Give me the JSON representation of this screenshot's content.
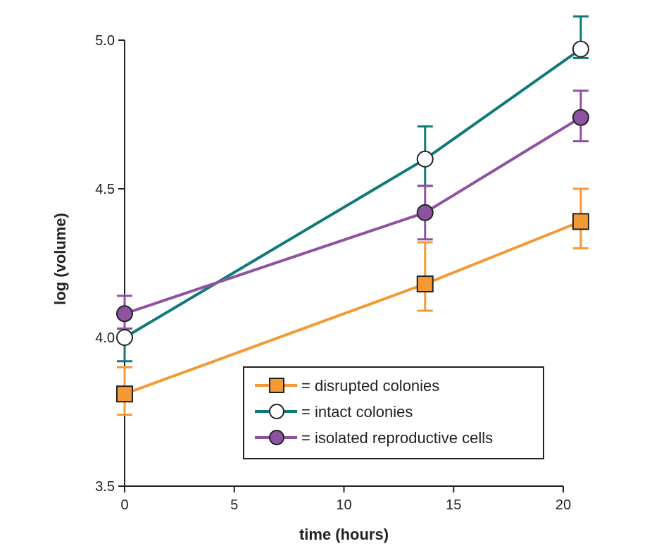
{
  "chart_data": {
    "type": "line",
    "title": "",
    "xlabel": "time (hours)",
    "ylabel": "log (volume)",
    "xlim": [
      0,
      20
    ],
    "ylim": [
      3.5,
      5.0
    ],
    "xticks": [
      0,
      5,
      10,
      15,
      20
    ],
    "xtick_labels": [
      "0",
      "5",
      "10",
      "15",
      "20"
    ],
    "yticks": [
      3.5,
      4.0,
      4.5,
      5.0
    ],
    "ytick_labels": [
      "3.5",
      "4.0",
      "4.5",
      "5.0"
    ],
    "grid": false,
    "legend_position": "lower-right",
    "series": [
      {
        "name": "disrupted colonies",
        "legend_label": "= disrupted colonies",
        "color": "#f39a34",
        "marker": "square",
        "marker_fill": "#f39a34",
        "x": [
          0,
          13.7,
          20.8
        ],
        "y": [
          3.81,
          4.18,
          4.39
        ],
        "err_low": [
          3.74,
          4.09,
          4.3
        ],
        "err_high": [
          3.9,
          4.32,
          4.5
        ]
      },
      {
        "name": "intact colonies",
        "legend_label": "= intact colonies",
        "color": "#117a78",
        "marker": "circle",
        "marker_fill": "#ffffff",
        "x": [
          0,
          13.7,
          20.8
        ],
        "y": [
          4.0,
          4.6,
          4.97
        ],
        "err_low": [
          3.92,
          4.51,
          4.94
        ],
        "err_high": [
          4.03,
          4.71,
          5.08
        ]
      },
      {
        "name": "isolated reproductive cells",
        "legend_label": "= isolated reproductive cells",
        "color": "#8e53a0",
        "marker": "circle",
        "marker_fill": "#8e53a0",
        "x": [
          0,
          13.7,
          20.8
        ],
        "y": [
          4.08,
          4.42,
          4.74
        ],
        "err_low": [
          4.03,
          4.33,
          4.66
        ],
        "err_high": [
          4.14,
          4.51,
          4.83
        ]
      }
    ]
  }
}
